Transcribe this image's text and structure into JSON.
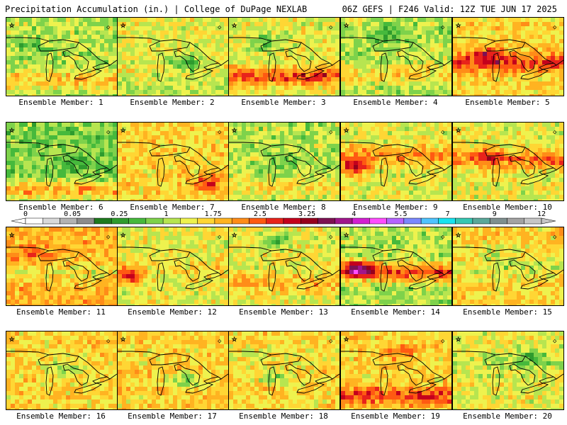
{
  "header": {
    "left_title": "Precipitation Accumulation (in.) | College of DuPage NEXLAB",
    "right_title": "06Z GEFS | F246 Valid: 12Z TUE JUN 17 2025"
  },
  "colorbar": {
    "labels": [
      "0",
      "0.05",
      "0.25",
      "1",
      "1.75",
      "2.5",
      "3.25",
      "4",
      "5.5",
      "7",
      "9",
      "12"
    ],
    "colors": [
      "#ffffff",
      "#d9d9d9",
      "#b3b3b3",
      "#8c8c8c",
      "#1e7a1e",
      "#2e9b2e",
      "#46b93c",
      "#7ed24b",
      "#b7e550",
      "#eef24e",
      "#ffd634",
      "#ffb321",
      "#ff8c18",
      "#ff5a12",
      "#e8231b",
      "#c4001c",
      "#96001d",
      "#7d1152",
      "#a0168c",
      "#d21fd2",
      "#ff4dff",
      "#b464ff",
      "#7a88ff",
      "#4fc3ff",
      "#17e3f0",
      "#36c7b3",
      "#5aa89a",
      "#7f8f8f",
      "#a3a3a3",
      "#c6c6c6"
    ]
  },
  "panels": [
    {
      "label": "Ensemble Member: 1"
    },
    {
      "label": "Ensemble Member: 2"
    },
    {
      "label": "Ensemble Member: 3"
    },
    {
      "label": "Ensemble Member: 4"
    },
    {
      "label": "Ensemble Member: 5"
    },
    {
      "label": "Ensemble Member: 6"
    },
    {
      "label": "Ensemble Member: 7"
    },
    {
      "label": "Ensemble Member: 8"
    },
    {
      "label": "Ensemble Member: 9"
    },
    {
      "label": "Ensemble Member: 10"
    },
    {
      "label": "Ensemble Member: 11"
    },
    {
      "label": "Ensemble Member: 12"
    },
    {
      "label": "Ensemble Member: 13"
    },
    {
      "label": "Ensemble Member: 14"
    },
    {
      "label": "Ensemble Member: 15"
    },
    {
      "label": "Ensemble Member: 16"
    },
    {
      "label": "Ensemble Member: 17"
    },
    {
      "label": "Ensemble Member: 18"
    },
    {
      "label": "Ensemble Member: 19"
    },
    {
      "label": "Ensemble Member: 20"
    }
  ]
}
